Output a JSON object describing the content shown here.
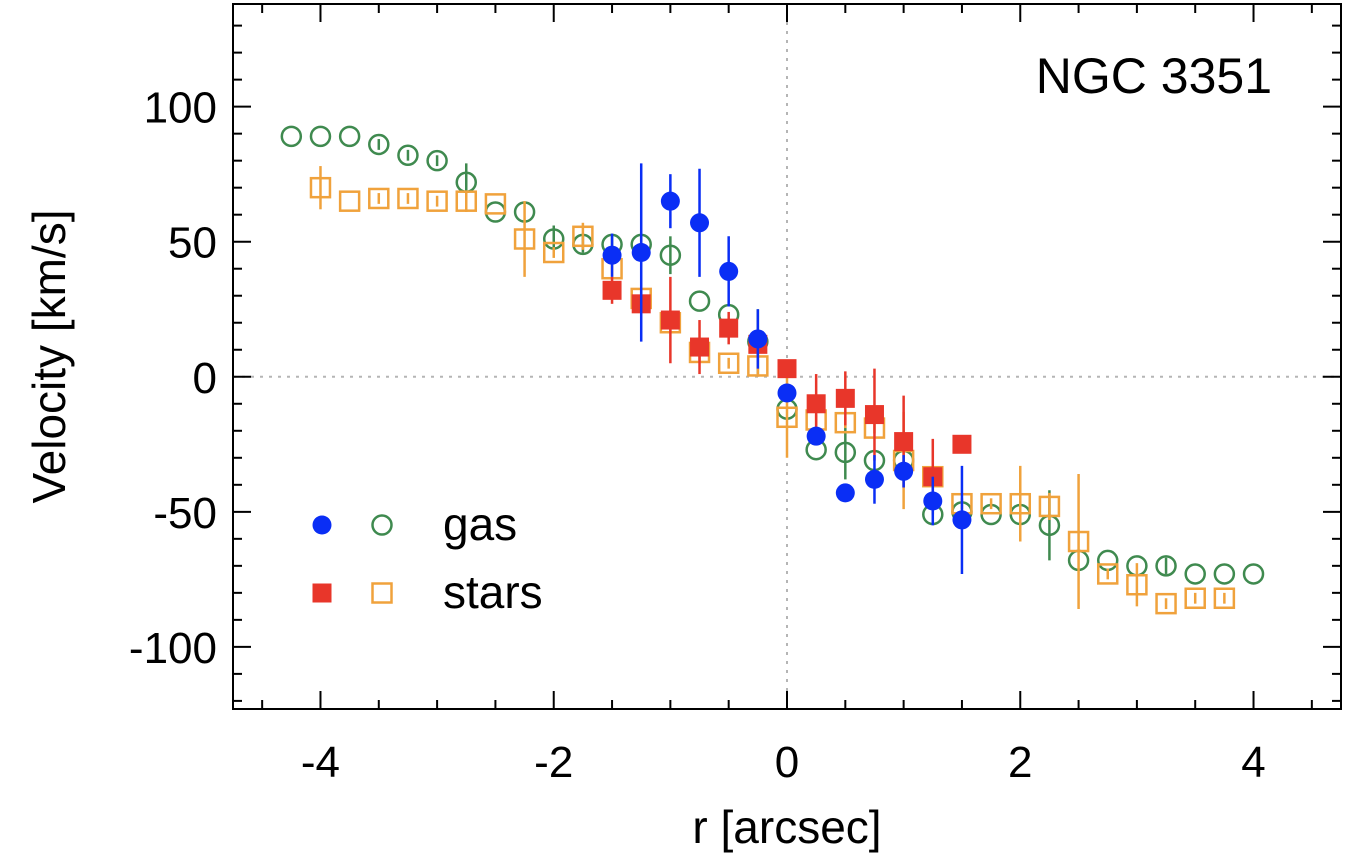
{
  "chart_data": {
    "type": "scatter",
    "title": "",
    "annotation": "NGC 3351",
    "xlabel": "r [arcsec]",
    "ylabel": "Velocity [km/s]",
    "xlim": [
      -4.75,
      4.75
    ],
    "ylim": [
      -123,
      138
    ],
    "xticks": [
      -4,
      -2,
      0,
      2,
      4
    ],
    "xtick_labels": [
      "-4",
      "-2",
      "0",
      "2",
      "4"
    ],
    "yticks": [
      -100,
      -50,
      0,
      50,
      100
    ],
    "ytick_labels": [
      "-100",
      "-50",
      "0",
      "50",
      "100"
    ],
    "zero_lines": {
      "x": 0,
      "y": 0,
      "style": "dotted-gray"
    },
    "legend": {
      "placement": "bottom-left",
      "entries": [
        {
          "label": "gas",
          "symbols": [
            "gas_filled",
            "gas_open"
          ]
        },
        {
          "label": "stars",
          "symbols": [
            "stars_filled",
            "stars_open"
          ]
        }
      ]
    },
    "series": [
      {
        "key": "gas_open",
        "marker": "open-circle",
        "color": "#3f8a4f",
        "x": [
          -4.25,
          -4.0,
          -3.75,
          -3.5,
          -3.25,
          -3.0,
          -2.75,
          -2.5,
          -2.25,
          -2.0,
          -1.75,
          -1.5,
          -1.25,
          -1.0,
          -0.75,
          -0.5,
          -0.25,
          0.0,
          0.25,
          0.5,
          0.75,
          1.0,
          1.25,
          1.5,
          1.75,
          2.0,
          2.25,
          2.5,
          2.75,
          3.0,
          3.25,
          3.5,
          3.75,
          4.0
        ],
        "y": [
          89,
          89,
          89,
          86,
          82,
          80,
          72,
          61,
          61,
          51,
          49,
          49,
          49,
          45,
          28,
          23,
          13,
          -12,
          -27,
          -28,
          -31,
          -31,
          -51,
          -50,
          -51,
          -51,
          -55,
          -68,
          -68,
          -70,
          -70,
          -73,
          -73,
          -73
        ],
        "yerr": [
          0,
          0,
          0,
          2,
          2,
          2,
          7,
          0,
          0,
          5,
          3,
          3,
          3,
          7,
          0,
          0,
          12,
          0,
          0,
          10,
          0,
          0,
          0,
          0,
          0,
          0,
          13,
          0,
          0,
          0,
          3,
          0,
          0,
          0
        ]
      },
      {
        "key": "stars_open",
        "marker": "open-square",
        "color": "#f0a23c",
        "x": [
          -4.0,
          -3.75,
          -3.5,
          -3.25,
          -3.0,
          -2.75,
          -2.5,
          -2.25,
          -2.0,
          -1.75,
          -1.5,
          -1.25,
          -1.0,
          -0.75,
          -0.5,
          -0.25,
          0.0,
          0.25,
          0.5,
          0.75,
          1.0,
          1.25,
          1.5,
          1.75,
          2.0,
          2.25,
          2.5,
          2.75,
          3.0,
          3.25,
          3.5,
          3.75
        ],
        "y": [
          70,
          65,
          66,
          66,
          65,
          65,
          64,
          51,
          46,
          52,
          40,
          29,
          20,
          9,
          5,
          4,
          -15,
          -16,
          -17,
          -19,
          -31,
          -37,
          -47,
          -47,
          -47,
          -48,
          -61,
          -73,
          -77,
          -84,
          -82,
          -82
        ],
        "yerr": [
          8,
          0,
          2,
          2,
          2,
          4,
          0,
          14,
          2,
          5,
          3,
          3,
          3,
          3,
          2,
          4,
          15,
          2,
          2,
          2,
          18,
          2,
          2,
          2,
          14,
          5,
          25,
          2,
          8,
          2,
          2,
          2
        ]
      },
      {
        "key": "stars_filled",
        "marker": "filled-square",
        "color": "#e8362a",
        "x": [
          -1.5,
          -1.25,
          -1.0,
          -0.75,
          -0.5,
          -0.25,
          0.0,
          0.25,
          0.5,
          0.75,
          1.0,
          1.25,
          1.5
        ],
        "y": [
          32,
          27,
          21,
          11,
          18,
          12,
          3,
          -10,
          -8,
          -14,
          -24,
          -37,
          -25
        ],
        "yerr": [
          5,
          3,
          16,
          10,
          6,
          3,
          3,
          11,
          10,
          17,
          17,
          14,
          0
        ]
      },
      {
        "key": "gas_filled",
        "marker": "filled-circle",
        "color": "#0a2ef5",
        "x": [
          -1.5,
          -1.25,
          -1.0,
          -0.75,
          -0.5,
          -0.25,
          0.0,
          0.25,
          0.5,
          0.75,
          1.0,
          1.25,
          1.5
        ],
        "y": [
          45,
          46,
          65,
          57,
          39,
          14,
          -6,
          -22,
          -43,
          -38,
          -35,
          -46,
          -53
        ],
        "yerr": [
          8,
          33,
          10,
          20,
          13,
          11,
          0,
          0,
          0,
          9,
          6,
          9,
          20
        ]
      }
    ]
  }
}
